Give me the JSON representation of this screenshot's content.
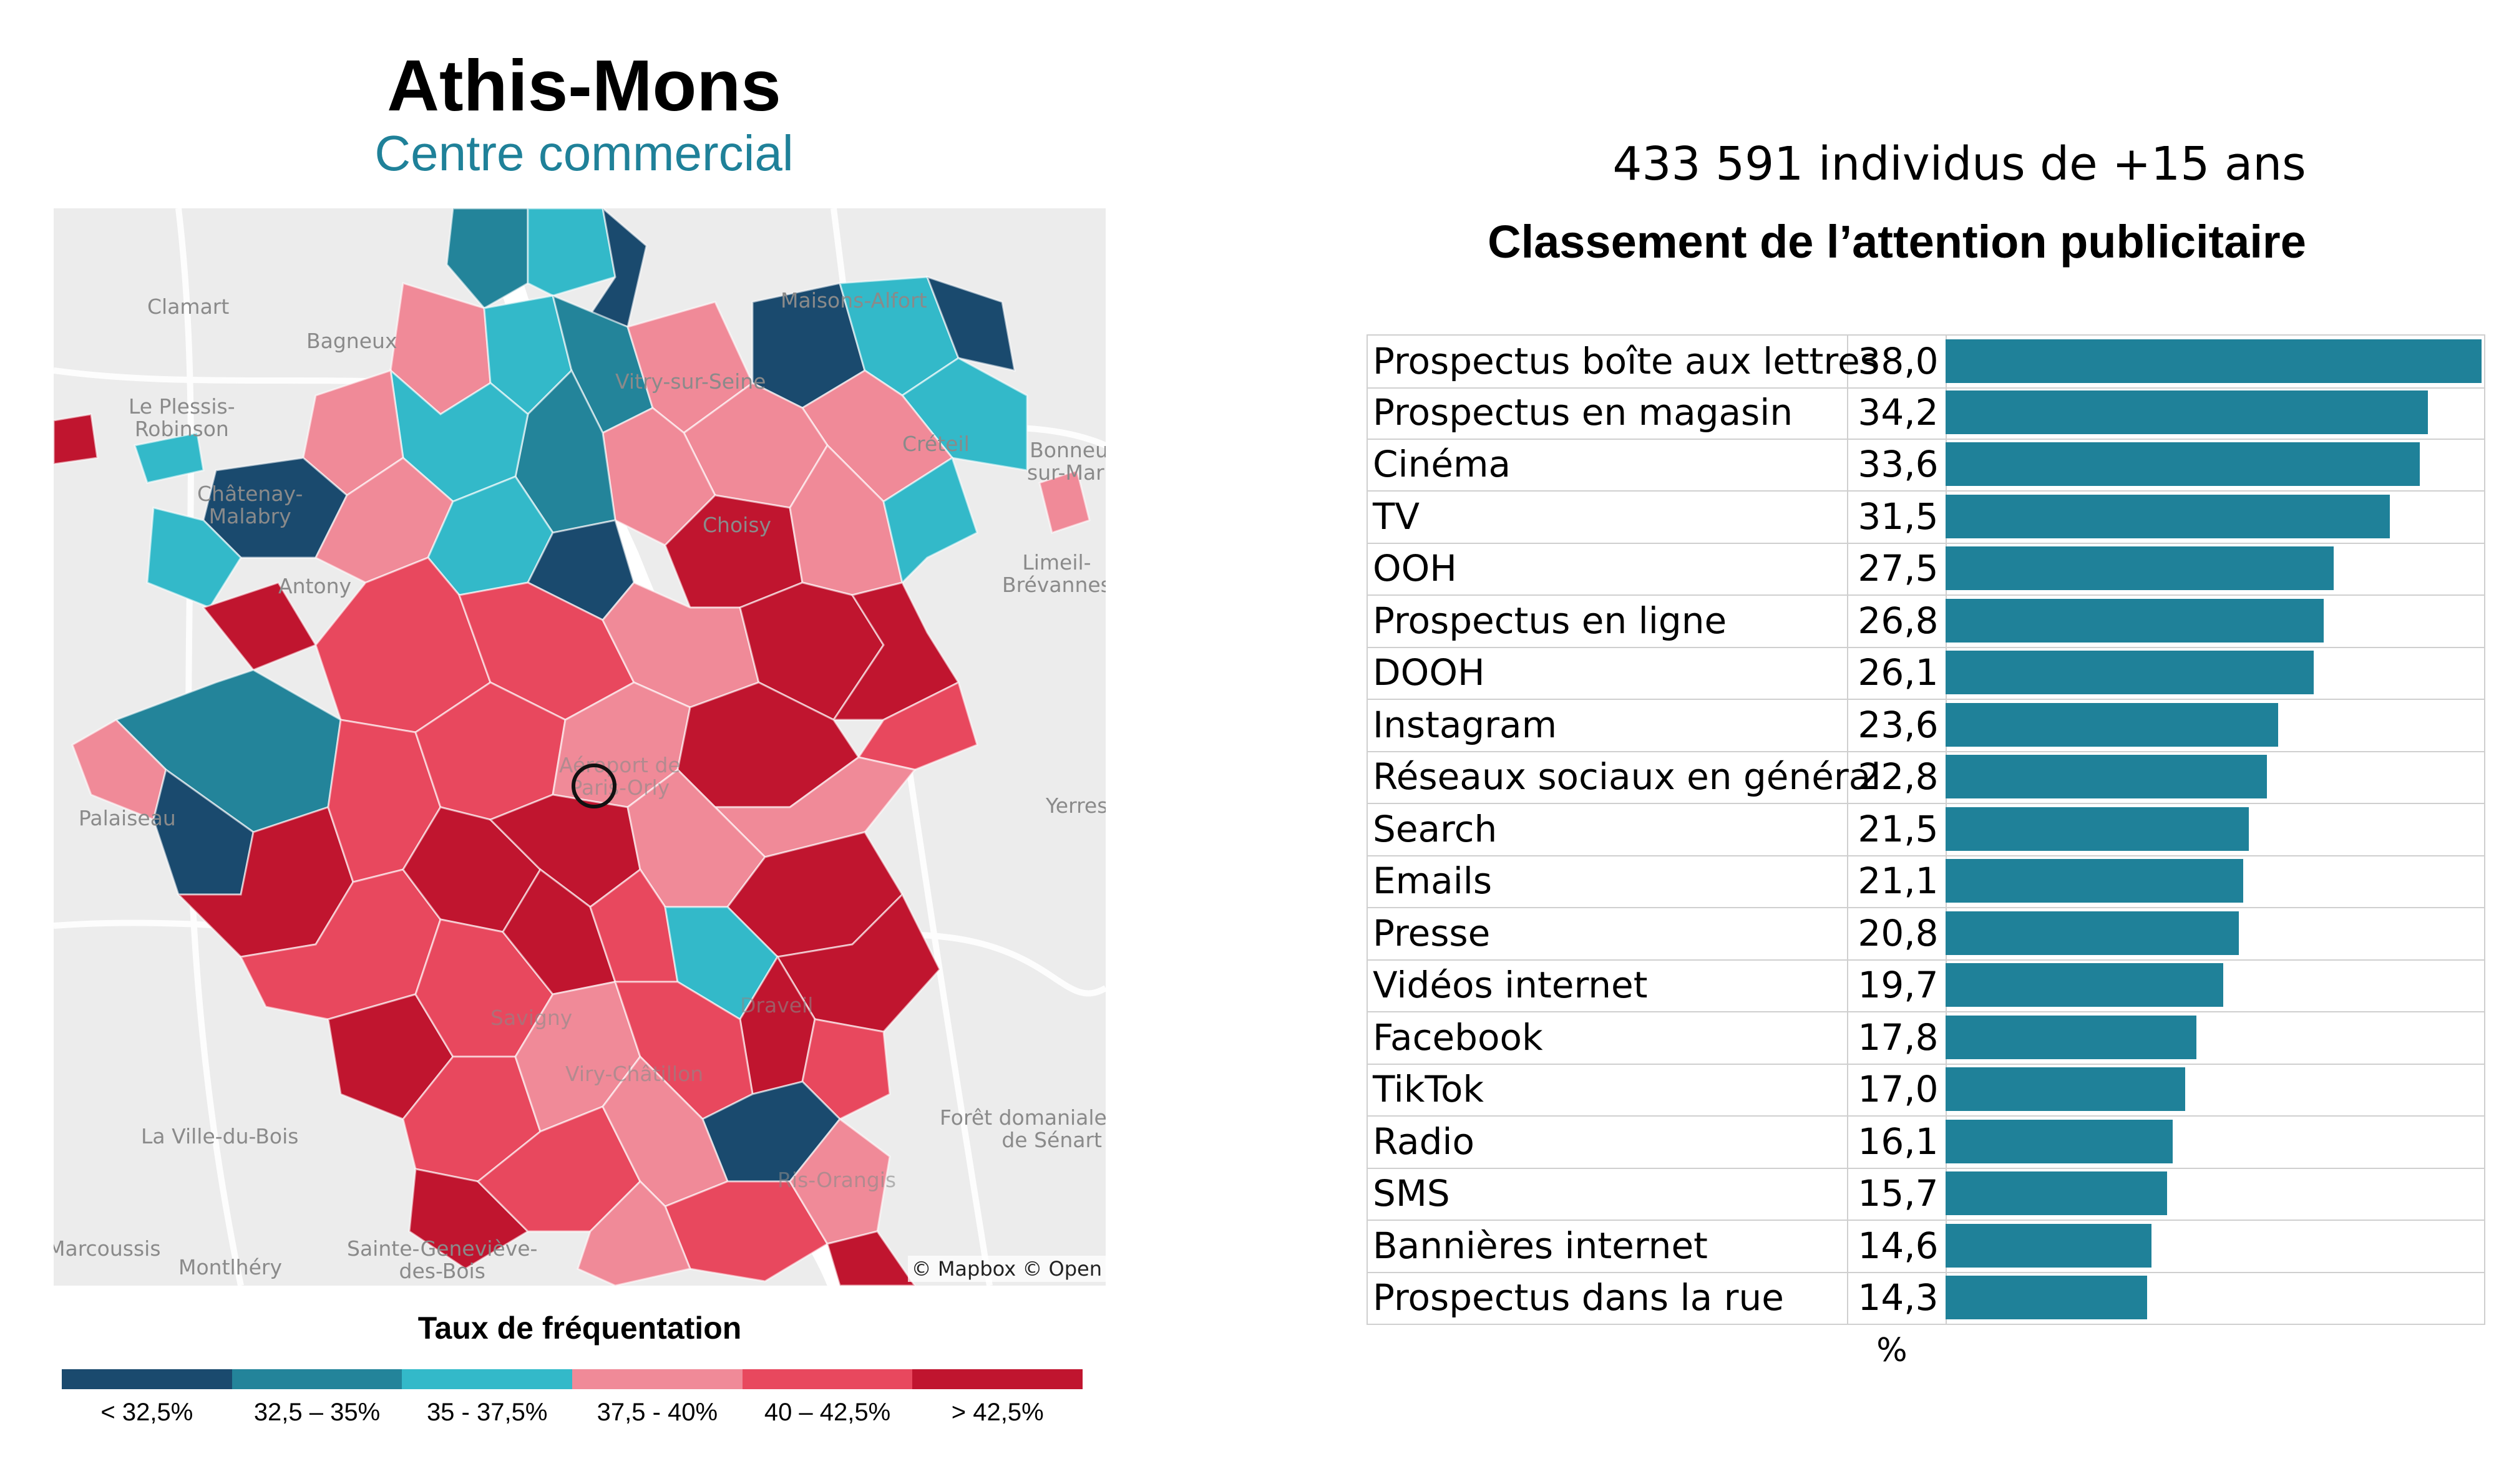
{
  "map_panel": {
    "title": "Athis-Mons",
    "subtitle": "Centre commercial",
    "credit": "© Mapbox © Open",
    "place_labels": [
      "Clamart",
      "Bagneux",
      "Le Plessis-\nRobinson",
      "Châtenay-\nMalabry",
      "Antony",
      "Maisons-Alfort",
      "Vitry-sur-Seine",
      "Créteil",
      "Bonneuil-\nsur-Marne",
      "Choisy",
      "Limeil-\nBrévannes",
      "Aéroport de\nParis-Orly",
      "Palaiseau",
      "Yerres",
      "Forêt domaniale\nde Sénart",
      "La Ville-du-Bois",
      "Sainte-Geneviève-\ndes-Bois",
      "Marcoussis",
      "Montlhéry",
      "Savigny",
      "Viry-Châtillon",
      "Draveil",
      "Ris-Orangis"
    ],
    "legend": {
      "title": "Taux de fréquentation",
      "classes": [
        {
          "label": "< 32,5%",
          "color": "#1a4a6e"
        },
        {
          "label": "32,5 – 35%",
          "color": "#23849a"
        },
        {
          "label": "35 - 37,5%",
          "color": "#33b9c9"
        },
        {
          "label": "37,5 - 40%",
          "color": "#f08a98"
        },
        {
          "label": "40 – 42,5%",
          "color": "#e8485e"
        },
        {
          "label": "> 42,5%",
          "color": "#c0152f"
        }
      ]
    }
  },
  "chart_panel": {
    "population_line": "433 591 individus de +15 ans",
    "heading": "Classement de l’attention publicitaire",
    "unit": "%",
    "bar_color": "#1f8199"
  },
  "chart_data": {
    "type": "bar",
    "orientation": "horizontal",
    "title": "Classement de l’attention publicitaire",
    "subtitle": "433 591 individus de +15 ans",
    "xlabel": "%",
    "xlim": [
      0,
      38.0
    ],
    "categories": [
      "Prospectus boîte aux lettres",
      "Prospectus en magasin",
      "Cinéma",
      "TV",
      "OOH",
      "Prospectus en ligne",
      "DOOH",
      "Instagram",
      "Réseaux sociaux en général",
      "Search",
      "Emails",
      "Presse",
      "Vidéos internet",
      "Facebook",
      "TikTok",
      "Radio",
      "SMS",
      "Bannières internet",
      "Prospectus dans la rue"
    ],
    "values": [
      38.0,
      34.2,
      33.6,
      31.5,
      27.5,
      26.8,
      26.1,
      23.6,
      22.8,
      21.5,
      21.1,
      20.8,
      19.7,
      17.8,
      17.0,
      16.1,
      15.7,
      14.6,
      14.3
    ],
    "value_labels": [
      "38,0",
      "34,2",
      "33,6",
      "31,5",
      "27,5",
      "26,8",
      "26,1",
      "23,6",
      "22,8",
      "21,5",
      "21,1",
      "20,8",
      "19,7",
      "17,8",
      "17,0",
      "16,1",
      "15,7",
      "14,6",
      "14,3"
    ]
  }
}
